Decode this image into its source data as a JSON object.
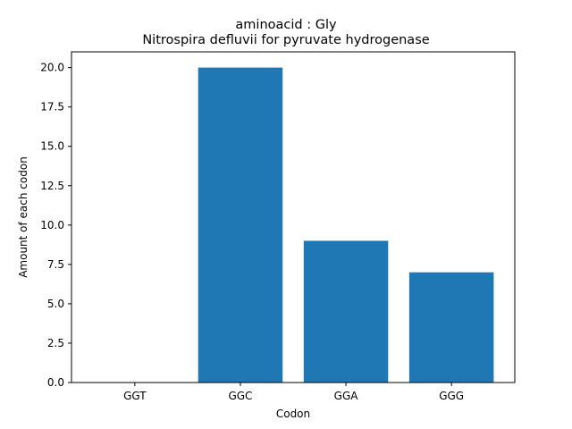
{
  "chart_data": {
    "type": "bar",
    "title": "aminoacid : Gly",
    "subtitle": "Nitrospira defluvii for pyruvate hydrogenase",
    "xlabel": "Codon",
    "ylabel": "Amount of each codon",
    "categories": [
      "GGT",
      "GGC",
      "GGA",
      "GGG"
    ],
    "values": [
      0,
      20,
      9,
      7
    ],
    "ylim": [
      0,
      21
    ],
    "yticks": [
      0.0,
      2.5,
      5.0,
      7.5,
      10.0,
      12.5,
      15.0,
      17.5,
      20.0
    ],
    "ytick_labels": [
      "0.0",
      "2.5",
      "5.0",
      "7.5",
      "10.0",
      "12.5",
      "15.0",
      "17.5",
      "20.0"
    ],
    "bar_color": "#1f77b4",
    "grid": false,
    "legend": false
  }
}
